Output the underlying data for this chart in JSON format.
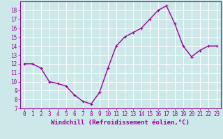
{
  "x": [
    0,
    1,
    2,
    3,
    4,
    5,
    6,
    7,
    8,
    9,
    10,
    11,
    12,
    13,
    14,
    15,
    16,
    17,
    18,
    19,
    20,
    21,
    22,
    23
  ],
  "y": [
    12,
    12,
    11.5,
    10,
    9.8,
    9.5,
    8.5,
    7.8,
    7.5,
    8.8,
    11.5,
    14,
    15,
    15.5,
    16,
    17,
    18,
    18.5,
    16.5,
    14,
    12.8,
    13.5,
    14,
    14
  ],
  "line_color": "#990099",
  "marker": "+",
  "marker_color": "#990099",
  "background_color": "#cce8e8",
  "grid_color": "#ffffff",
  "xlabel": "Windchill (Refroidissement éolien,°C)",
  "xlabel_color": "#990099",
  "tick_color": "#990099",
  "spine_color": "#990099",
  "ylim": [
    7,
    19
  ],
  "xlim": [
    -0.5,
    23.5
  ],
  "yticks": [
    7,
    8,
    9,
    10,
    11,
    12,
    13,
    14,
    15,
    16,
    17,
    18
  ],
  "xticks": [
    0,
    1,
    2,
    3,
    4,
    5,
    6,
    7,
    8,
    9,
    10,
    11,
    12,
    13,
    14,
    15,
    16,
    17,
    18,
    19,
    20,
    21,
    22,
    23
  ],
  "tick_fontsize": 5.5,
  "xlabel_fontsize": 6.5,
  "linewidth": 1.0,
  "markersize": 3.5
}
